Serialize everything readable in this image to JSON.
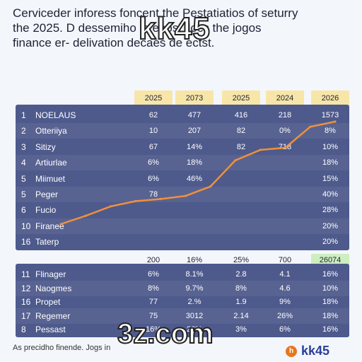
{
  "title_lines": [
    "Cerviceder inforess foncent the Pestatiatios of seturry",
    "the 2025. D dessemiho le eeosi tlocs the jogos",
    "finance er- delivation decaes de ectst."
  ],
  "watermark_top": "kk45",
  "watermark_bottom": "3z.com",
  "footer_text": "As precidho finende. Jogs in",
  "logo": {
    "text": "kk45",
    "mark": "h"
  },
  "colors": {
    "panel": "#4e5a8c",
    "header": "#f7e6a8",
    "line": "#f0903a",
    "highlight": "#cdeec0"
  },
  "chart_data": {
    "type": "table",
    "column_headers": [
      "2025",
      "2073",
      "2025",
      "2024",
      "2026"
    ],
    "rows_top": [
      {
        "idx": "1",
        "name": "NOELAUS",
        "values": [
          "62",
          "477",
          "416",
          "218",
          "1573"
        ]
      },
      {
        "idx": "2",
        "name": "Otteriiya",
        "values": [
          "10",
          "207",
          "82",
          "0%",
          "8%"
        ]
      },
      {
        "idx": "3",
        "name": "Sitizy",
        "values": [
          "67",
          "14%",
          "82",
          "718",
          "10%"
        ]
      },
      {
        "idx": "4",
        "name": "Artiurlae",
        "values": [
          "6%",
          "18%",
          "",
          "",
          "18%"
        ]
      },
      {
        "idx": "5",
        "name": "Miimuet",
        "values": [
          "6%",
          "46%",
          "",
          "",
          "15%"
        ]
      },
      {
        "idx": "5",
        "name": "Peger",
        "values": [
          "78",
          "",
          "",
          "",
          "40%"
        ]
      },
      {
        "idx": "6",
        "name": "Fucio",
        "values": [
          "",
          "",
          "",
          "",
          "28%"
        ]
      },
      {
        "idx": "10",
        "name": "Firanee",
        "values": [
          "",
          "",
          "",
          "",
          "20%"
        ]
      },
      {
        "idx": "16",
        "name": "Taterp",
        "values": [
          "",
          "",
          "",
          "",
          "20%"
        ]
      }
    ],
    "mid_headers": [
      "200",
      "16%",
      "25%",
      "700",
      "26074"
    ],
    "rows_bottom": [
      {
        "idx": "11",
        "name": "Flinager",
        "values": [
          "6%",
          "8.1%",
          "2.8",
          "4.1",
          "16%"
        ]
      },
      {
        "idx": "12",
        "name": "Naogmes",
        "values": [
          "8%",
          "9.7%",
          "8%",
          "4.6",
          "10%"
        ]
      },
      {
        "idx": "16",
        "name": "Propet",
        "values": [
          "77",
          "2.%",
          "1.9",
          "9%",
          "18%"
        ]
      },
      {
        "idx": "17",
        "name": "Regemer",
        "values": [
          "75",
          "3012",
          "2.14",
          "26%",
          "18%"
        ]
      },
      {
        "idx": "8",
        "name": "Pessast",
        "values": [
          "16%",
          "26%",
          "3%",
          "6%",
          "16%"
        ]
      }
    ],
    "line_series": {
      "x": [
        0,
        1,
        2,
        3,
        4,
        5,
        6,
        7,
        8,
        9,
        10,
        11
      ],
      "values": [
        2,
        10,
        19,
        24,
        26,
        29,
        38,
        63,
        73,
        75,
        95,
        100
      ],
      "ylim": [
        0,
        100
      ]
    }
  }
}
